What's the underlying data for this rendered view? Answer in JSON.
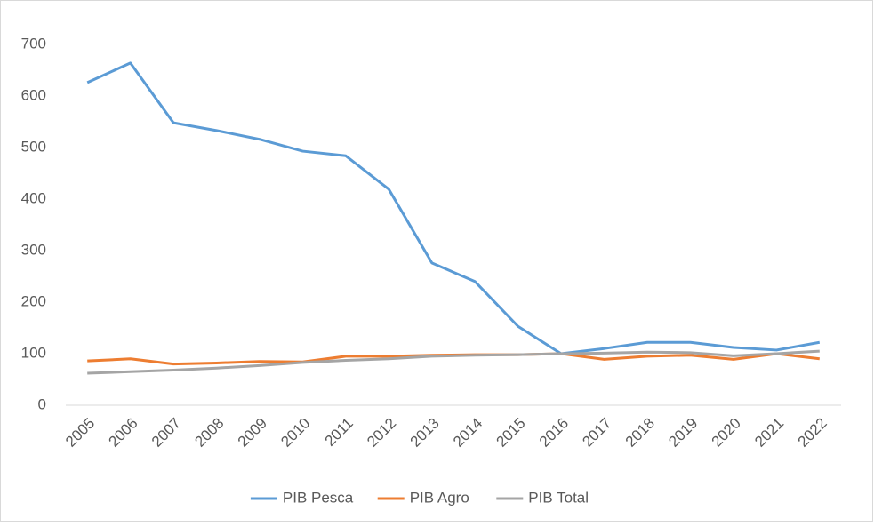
{
  "chart_data": {
    "type": "line",
    "categories": [
      "2005",
      "2006",
      "2007",
      "2008",
      "2009",
      "2010",
      "2011",
      "2012",
      "2013",
      "2014",
      "2015",
      "2016",
      "2017",
      "2018",
      "2019",
      "2020",
      "2021",
      "2022"
    ],
    "series": [
      {
        "name": "PIB Pesca",
        "color": "#5b9bd5",
        "values": [
          626,
          664,
          548,
          533,
          516,
          493,
          484,
          419,
          276,
          240,
          153,
          100,
          110,
          122,
          122,
          112,
          107,
          122
        ]
      },
      {
        "name": "PIB Agro",
        "color": "#ed7d31",
        "values": [
          86,
          90,
          80,
          82,
          85,
          84,
          95,
          95,
          97,
          98,
          98,
          100,
          89,
          95,
          97,
          89,
          100,
          90
        ]
      },
      {
        "name": "PIB Total",
        "color": "#a5a5a5",
        "values": [
          62,
          65,
          68,
          72,
          77,
          83,
          87,
          90,
          95,
          97,
          98,
          100,
          101,
          103,
          102,
          96,
          100,
          105
        ]
      }
    ],
    "ylim": [
      0,
      700
    ],
    "yticks": [
      0,
      100,
      200,
      300,
      400,
      500,
      600,
      700
    ],
    "grid": false,
    "legend": "bottom"
  }
}
